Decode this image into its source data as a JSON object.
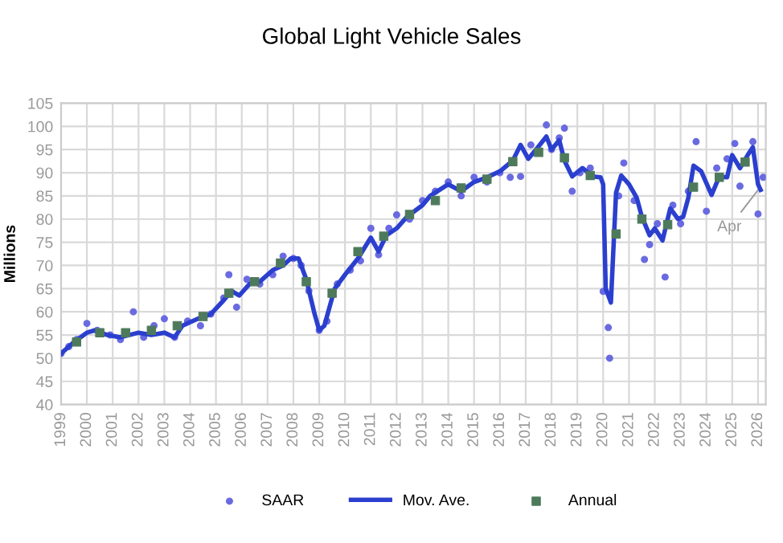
{
  "chart_data": {
    "type": "line",
    "title": "Global Light Vehicle Sales",
    "ylabel": "Millions",
    "xlim": [
      1999,
      2026.3
    ],
    "xticks": [
      1999,
      2000,
      2001,
      2002,
      2003,
      2004,
      2005,
      2006,
      2007,
      2008,
      2009,
      2010,
      2011,
      2012,
      2013,
      2014,
      2015,
      2016,
      2017,
      2018,
      2019,
      2020,
      2021,
      2022,
      2023,
      2024,
      2025,
      2026
    ],
    "ylim": [
      40,
      105
    ],
    "yticks": [
      40,
      45,
      50,
      55,
      60,
      65,
      70,
      75,
      80,
      85,
      90,
      95,
      100,
      105
    ],
    "grid": true,
    "legend": "bottom",
    "annotations": [
      {
        "text": "Apr",
        "x": 2026.1,
        "y": 87
      }
    ],
    "series": [
      {
        "name": "SAAR",
        "type": "scatter",
        "marker": "circle",
        "color": "#6a6ae0",
        "x": [
          1999.0,
          1999.3,
          1999.6,
          2000.0,
          2000.4,
          2000.9,
          2001.3,
          2001.8,
          2002.2,
          2002.6,
          2003.0,
          2003.4,
          2003.9,
          2004.4,
          2004.8,
          2005.3,
          2005.5,
          2005.8,
          2006.2,
          2006.7,
          2007.2,
          2007.6,
          2008.0,
          2008.3,
          2008.6,
          2009.0,
          2009.3,
          2009.7,
          2010.2,
          2010.6,
          2011.0,
          2011.3,
          2011.7,
          2012.0,
          2012.5,
          2013.0,
          2013.5,
          2014.0,
          2014.5,
          2015.0,
          2015.5,
          2016.0,
          2016.4,
          2016.8,
          2017.2,
          2017.8,
          2018.0,
          2018.3,
          2018.5,
          2018.8,
          2019.1,
          2019.5,
          2020.0,
          2020.2,
          2020.25,
          2020.6,
          2020.8,
          2021.2,
          2021.6,
          2021.8,
          2022.1,
          2022.4,
          2022.7,
          2023.0,
          2023.3,
          2023.6,
          2024.0,
          2024.4,
          2024.8,
          2025.1,
          2025.3,
          2025.8,
          2026.0,
          2026.2
        ],
        "values": [
          51,
          52.5,
          54,
          57.5,
          56,
          55,
          54,
          60,
          54.5,
          57,
          58.5,
          54.5,
          58,
          57,
          59.5,
          63,
          68,
          61,
          67,
          66,
          68,
          72,
          71.5,
          70,
          64.5,
          56,
          58,
          66,
          69,
          71,
          78,
          72.3,
          78,
          80.9,
          80,
          84,
          86,
          88,
          85,
          89,
          88,
          90,
          89,
          89.2,
          96,
          100.3,
          95,
          97.5,
          99.6,
          86,
          90,
          91,
          64.4,
          56.6,
          50,
          85,
          92.1,
          84,
          71.3,
          74.5,
          79,
          67.5,
          83,
          79,
          86,
          96.7,
          81.7,
          91,
          93,
          96.3,
          87.1,
          96.7,
          81.1,
          89
        ]
      },
      {
        "name": "Mov. Ave.",
        "marker": "none",
        "line_style": "solid",
        "color": "#2b3fcf",
        "x": [
          1999.0,
          1999.5,
          2000.0,
          2000.3,
          2000.8,
          2001.3,
          2002.0,
          2002.5,
          2003.0,
          2003.4,
          2003.7,
          2004.3,
          2004.8,
          2005.3,
          2005.6,
          2005.9,
          2006.3,
          2006.7,
          2007.2,
          2007.6,
          2007.9,
          2008.2,
          2008.5,
          2008.8,
          2009.0,
          2009.2,
          2009.6,
          2010.0,
          2010.5,
          2011.0,
          2011.3,
          2011.6,
          2012.0,
          2012.4,
          2013.0,
          2013.3,
          2014.0,
          2014.5,
          2015.0,
          2015.5,
          2016.0,
          2016.5,
          2016.8,
          2017.1,
          2017.4,
          2017.8,
          2018.0,
          2018.3,
          2018.5,
          2018.8,
          2019.2,
          2019.6,
          2019.9,
          2020.0,
          2020.1,
          2020.3,
          2020.5,
          2020.7,
          2021.0,
          2021.3,
          2021.5,
          2021.8,
          2022.0,
          2022.3,
          2022.6,
          2022.9,
          2023.1,
          2023.3,
          2023.5,
          2023.8,
          2024.2,
          2024.5,
          2024.8,
          2025.0,
          2025.3,
          2025.6,
          2025.8,
          2026.0,
          2026.1
        ],
        "values": [
          51,
          53.5,
          55.5,
          56,
          55,
          54.5,
          55.5,
          55,
          55.5,
          54.5,
          57,
          58.5,
          59.5,
          62.5,
          64.5,
          63.5,
          66,
          66.5,
          69,
          70,
          71.5,
          71.5,
          67,
          60,
          56,
          57,
          65,
          68,
          71.5,
          76,
          73,
          76.5,
          78,
          80.5,
          83,
          85,
          87.5,
          86,
          88,
          89,
          90.3,
          92.6,
          96,
          93,
          95,
          97.8,
          95,
          97,
          92.6,
          89.2,
          91,
          89.2,
          89,
          87.5,
          65,
          62,
          85.7,
          89.4,
          87.5,
          84.6,
          80.5,
          76.5,
          78,
          75.4,
          82.3,
          80,
          80.5,
          84.6,
          91.5,
          90.3,
          85.2,
          89.2,
          89,
          93.8,
          91,
          93.8,
          95.5,
          87.5,
          86.3
        ]
      },
      {
        "name": "Annual",
        "type": "scatter",
        "marker": "square",
        "color": "#4e7a5c",
        "x": [
          1999.6,
          2000.5,
          2001.5,
          2002.5,
          2003.5,
          2004.5,
          2005.5,
          2006.5,
          2007.5,
          2008.5,
          2009.5,
          2010.5,
          2011.5,
          2012.5,
          2013.5,
          2014.5,
          2015.5,
          2016.5,
          2017.5,
          2018.5,
          2019.5,
          2020.5,
          2021.5,
          2022.5,
          2023.5,
          2024.5,
          2025.5
        ],
        "values": [
          53.5,
          55.5,
          55.5,
          56,
          57,
          59,
          64,
          66.5,
          70.5,
          66.5,
          64,
          73,
          76.3,
          81,
          84,
          86.7,
          88.6,
          92.4,
          94.4,
          93.2,
          89.4,
          76.8,
          80,
          78.8,
          86.9,
          89,
          92.3
        ]
      }
    ]
  }
}
